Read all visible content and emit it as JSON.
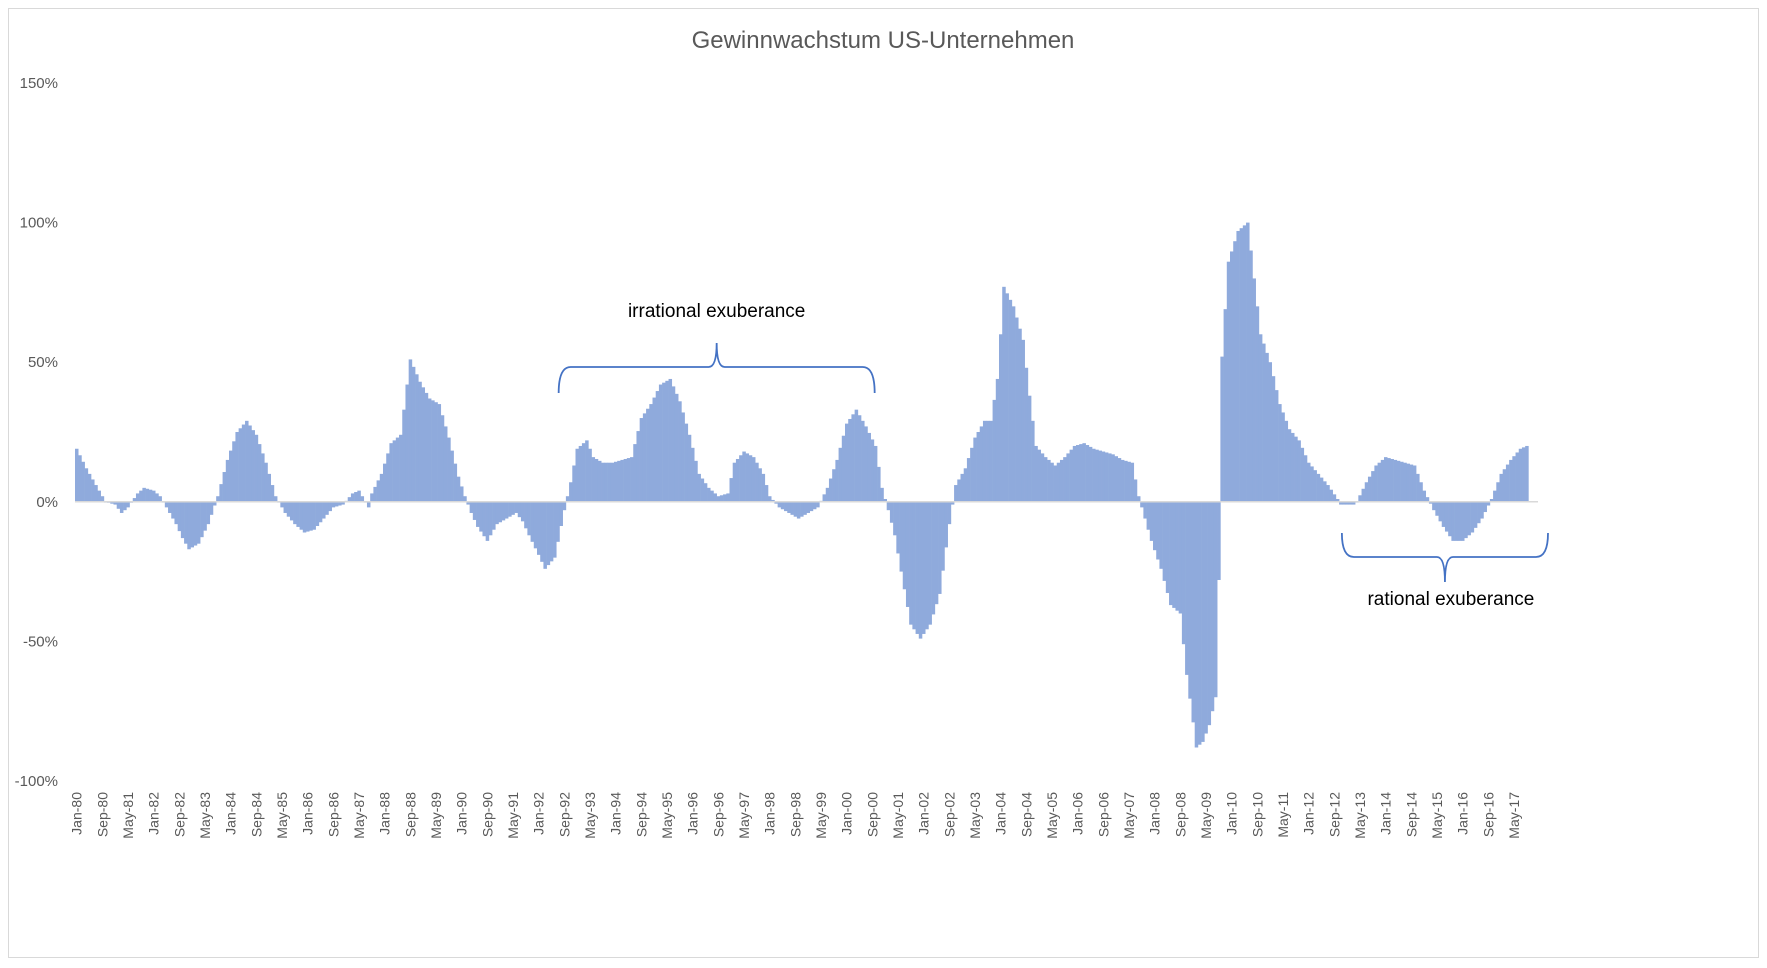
{
  "chart_data": {
    "type": "bar",
    "title": "Gewinnwachstum US-Unternehmen",
    "xlabel": "",
    "ylabel": "",
    "ylim": [
      -100,
      150
    ],
    "yticks": [
      "150%",
      "100%",
      "50%",
      "0%",
      "-50%",
      "-100%"
    ],
    "ytick_values": [
      150,
      100,
      50,
      0,
      -50,
      -100
    ],
    "x_start": "Jan-80",
    "x_end": "Dec-17",
    "x_frequency": "monthly",
    "xtick_labels": [
      "Jan-80",
      "Sep-80",
      "May-81",
      "Jan-82",
      "Sep-82",
      "May-83",
      "Jan-84",
      "Sep-84",
      "May-85",
      "Jan-86",
      "Sep-86",
      "May-87",
      "Jan-88",
      "Sep-88",
      "May-89",
      "Jan-90",
      "Sep-90",
      "May-91",
      "Jan-92",
      "Sep-92",
      "May-93",
      "Jan-94",
      "Sep-94",
      "May-95",
      "Jan-96",
      "Sep-96",
      "May-97",
      "Jan-98",
      "Sep-98",
      "May-99",
      "Jan-00",
      "Sep-00",
      "May-01",
      "Jan-02",
      "Sep-02",
      "May-03",
      "Jan-04",
      "Sep-04",
      "May-05",
      "Jan-06",
      "Sep-06",
      "May-07",
      "Jan-08",
      "Sep-08",
      "May-09",
      "Jan-10",
      "Sep-10",
      "May-11",
      "Jan-12",
      "Sep-12",
      "May-13",
      "Jan-14",
      "Sep-14",
      "May-15",
      "Jan-16",
      "Sep-16",
      "May-17"
    ],
    "series": [
      {
        "color": "#8faadc",
        "keyframes": [
          [
            "Jan-80",
            19
          ],
          [
            "Apr-80",
            12
          ],
          [
            "Jul-80",
            6
          ],
          [
            "Oct-80",
            0
          ],
          [
            "Jan-81",
            -1
          ],
          [
            "Mar-81",
            -4
          ],
          [
            "May-81",
            -2
          ],
          [
            "Aug-81",
            3
          ],
          [
            "Oct-81",
            5
          ],
          [
            "Jan-82",
            4
          ],
          [
            "Mar-82",
            2
          ],
          [
            "May-82",
            -2
          ],
          [
            "Aug-82",
            -8
          ],
          [
            "Oct-82",
            -13
          ],
          [
            "Dec-82",
            -17
          ],
          [
            "Mar-83",
            -15
          ],
          [
            "Jun-83",
            -8
          ],
          [
            "Sep-83",
            2
          ],
          [
            "Dec-83",
            15
          ],
          [
            "Mar-84",
            25
          ],
          [
            "Jun-84",
            29
          ],
          [
            "Sep-84",
            24
          ],
          [
            "Dec-84",
            14
          ],
          [
            "Mar-85",
            2
          ],
          [
            "Jun-85",
            -4
          ],
          [
            "Sep-85",
            -8
          ],
          [
            "Dec-85",
            -11
          ],
          [
            "Mar-86",
            -10
          ],
          [
            "Jun-86",
            -6
          ],
          [
            "Sep-86",
            -2
          ],
          [
            "Dec-86",
            -1
          ],
          [
            "Mar-87",
            3
          ],
          [
            "May-87",
            4
          ],
          [
            "Jul-87",
            0
          ],
          [
            "Aug-87",
            -2
          ],
          [
            "Sep-87",
            3
          ],
          [
            "Dec-87",
            10
          ],
          [
            "Mar-88",
            21
          ],
          [
            "Jun-88",
            24
          ],
          [
            "Aug-88",
            42
          ],
          [
            "Sep-88",
            51
          ],
          [
            "Dec-88",
            43
          ],
          [
            "Mar-89",
            37
          ],
          [
            "Jun-89",
            35
          ],
          [
            "Sep-89",
            23
          ],
          [
            "Dec-89",
            9
          ],
          [
            "Feb-90",
            2
          ],
          [
            "Apr-90",
            -4
          ],
          [
            "Jun-90",
            -9
          ],
          [
            "Sep-90",
            -14
          ],
          [
            "Dec-90",
            -8
          ],
          [
            "Mar-91",
            -6
          ],
          [
            "Jun-91",
            -4
          ],
          [
            "Aug-91",
            -7
          ],
          [
            "Oct-91",
            -12
          ],
          [
            "Jan-92",
            -19
          ],
          [
            "Mar-92",
            -24
          ],
          [
            "Jun-92",
            -20
          ],
          [
            "Sep-92",
            -3
          ],
          [
            "Nov-92",
            7
          ],
          [
            "Jan-93",
            19
          ],
          [
            "Apr-93",
            22
          ],
          [
            "Jun-93",
            16
          ],
          [
            "Sep-93",
            14
          ],
          [
            "Dec-93",
            14
          ],
          [
            "Mar-94",
            15
          ],
          [
            "Jun-94",
            16
          ],
          [
            "Sep-94",
            30
          ],
          [
            "Dec-94",
            35
          ],
          [
            "Mar-95",
            42
          ],
          [
            "Jun-95",
            44
          ],
          [
            "Sep-95",
            36
          ],
          [
            "Dec-95",
            24
          ],
          [
            "Mar-96",
            10
          ],
          [
            "Jun-96",
            5
          ],
          [
            "Sep-96",
            2
          ],
          [
            "Dec-96",
            3
          ],
          [
            "Feb-97",
            14
          ],
          [
            "May-97",
            18
          ],
          [
            "Aug-97",
            16
          ],
          [
            "Nov-97",
            10
          ],
          [
            "Jan-98",
            2
          ],
          [
            "Apr-98",
            -2
          ],
          [
            "Jul-98",
            -4
          ],
          [
            "Oct-98",
            -6
          ],
          [
            "Jan-99",
            -4
          ],
          [
            "Apr-99",
            -2
          ],
          [
            "Jul-99",
            5
          ],
          [
            "Oct-99",
            15
          ],
          [
            "Jan-00",
            28
          ],
          [
            "Apr-00",
            33
          ],
          [
            "Jul-00",
            27
          ],
          [
            "Oct-00",
            20
          ],
          [
            "Dec-00",
            5
          ],
          [
            "Feb-01",
            -3
          ],
          [
            "Apr-01",
            -12
          ],
          [
            "Jun-01",
            -25
          ],
          [
            "Sep-01",
            -44
          ],
          [
            "Dec-01",
            -49
          ],
          [
            "Mar-02",
            -44
          ],
          [
            "Jun-02",
            -33
          ],
          [
            "Sep-02",
            -8
          ],
          [
            "Nov-02",
            6
          ],
          [
            "Feb-03",
            12
          ],
          [
            "May-03",
            23
          ],
          [
            "Aug-03",
            29
          ],
          [
            "Oct-03",
            29
          ],
          [
            "Dec-03",
            44
          ],
          [
            "Jan-04",
            60
          ],
          [
            "Feb-04",
            77
          ],
          [
            "May-04",
            70
          ],
          [
            "Aug-04",
            58
          ],
          [
            "Oct-04",
            38
          ],
          [
            "Dec-04",
            20
          ],
          [
            "Mar-05",
            16
          ],
          [
            "Jun-05",
            13
          ],
          [
            "Sep-05",
            16
          ],
          [
            "Dec-05",
            20
          ],
          [
            "Mar-06",
            21
          ],
          [
            "Jun-06",
            19
          ],
          [
            "Sep-06",
            18
          ],
          [
            "Dec-06",
            17
          ],
          [
            "Mar-07",
            15
          ],
          [
            "Jun-07",
            14
          ],
          [
            "Aug-07",
            2
          ],
          [
            "Oct-07",
            -6
          ],
          [
            "Dec-07",
            -14
          ],
          [
            "Mar-08",
            -24
          ],
          [
            "Jun-08",
            -37
          ],
          [
            "Sep-08",
            -40
          ],
          [
            "Nov-08",
            -62
          ],
          [
            "Jan-09",
            -79
          ],
          [
            "Feb-09",
            -88
          ],
          [
            "Apr-09",
            -86
          ],
          [
            "Jun-09",
            -80
          ],
          [
            "Aug-09",
            -70
          ],
          [
            "Sep-09",
            -28
          ],
          [
            "Oct-09",
            52
          ],
          [
            "Dec-09",
            86
          ],
          [
            "Mar-10",
            97
          ],
          [
            "Jun-10",
            100
          ],
          [
            "Aug-10",
            80
          ],
          [
            "Oct-10",
            60
          ],
          [
            "Jan-11",
            50
          ],
          [
            "Apr-11",
            35
          ],
          [
            "Jul-11",
            26
          ],
          [
            "Oct-11",
            22
          ],
          [
            "Jan-12",
            14
          ],
          [
            "Apr-12",
            10
          ],
          [
            "Jul-12",
            6
          ],
          [
            "Oct-12",
            1
          ],
          [
            "Nov-12",
            -1
          ],
          [
            "Mar-13",
            -1
          ],
          [
            "Apr-13",
            0
          ],
          [
            "Jul-13",
            7
          ],
          [
            "Oct-13",
            13
          ],
          [
            "Jan-14",
            16
          ],
          [
            "Apr-14",
            15
          ],
          [
            "Jul-14",
            14
          ],
          [
            "Oct-14",
            13
          ],
          [
            "Jan-15",
            4
          ],
          [
            "Apr-15",
            -3
          ],
          [
            "Jul-15",
            -9
          ],
          [
            "Oct-15",
            -14
          ],
          [
            "Jan-16",
            -14
          ],
          [
            "Apr-16",
            -11
          ],
          [
            "Jul-16",
            -6
          ],
          [
            "Oct-16",
            1
          ],
          [
            "Jan-17",
            10
          ],
          [
            "Apr-17",
            15
          ],
          [
            "Jul-17",
            19
          ],
          [
            "Sep-17",
            20
          ]
        ]
      }
    ],
    "annotations": [
      {
        "text": "irrational exuberance",
        "from": "Sep-92",
        "to": "Sep-00",
        "side": "above"
      },
      {
        "text": "rational exuberance",
        "from": "Oct-12",
        "to": "Dec-17",
        "side": "below"
      }
    ],
    "grid": false,
    "legend": "none"
  }
}
